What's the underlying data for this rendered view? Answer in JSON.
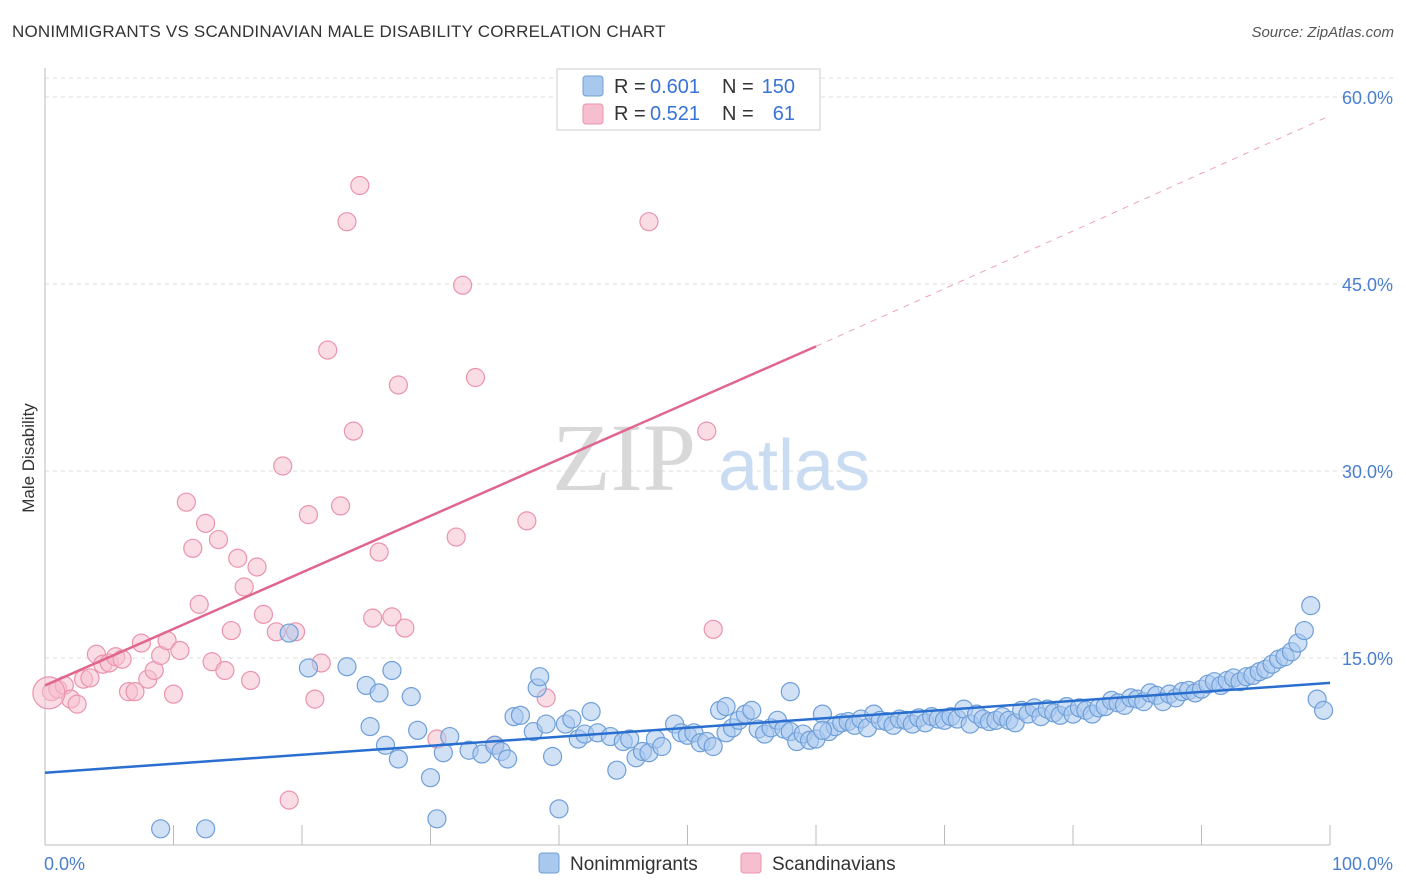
{
  "title": "NONIMMIGRANTS VS SCANDINAVIAN MALE DISABILITY CORRELATION CHART",
  "source": "Source: ZipAtlas.com",
  "watermark": {
    "zip": "ZIP",
    "atlas": "atlas"
  },
  "colors": {
    "blue_fill": "#a9c8ee",
    "blue_stroke": "#6f9fd8",
    "blue_line": "#2a6fd0",
    "pink_fill": "#f6bfd0",
    "pink_stroke": "#ea93ae",
    "pink_line": "#e0668e",
    "tick_text": "#4a7fd0",
    "grid": "#dddddd"
  },
  "legend": {
    "rows": [
      {
        "r_label": "R = ",
        "r_value": "0.601",
        "n_label": "N = ",
        "n_value": "150"
      },
      {
        "r_label": "R = ",
        "r_value": "0.521",
        "n_label": "N = ",
        "n_value": "61"
      }
    ]
  },
  "chart_data": {
    "type": "scatter",
    "title": "NONIMMIGRANTS VS SCANDINAVIAN MALE DISABILITY CORRELATION CHART",
    "xlabel": "",
    "ylabel": "Male Disability",
    "xlim": [
      0,
      100
    ],
    "ylim": [
      0,
      60
    ],
    "x_tick_labels": [
      {
        "value": 0,
        "label": "0.0%"
      },
      {
        "value": 100,
        "label": "100.0%"
      }
    ],
    "y_tick_labels": [
      {
        "value": 15,
        "label": "15.0%"
      },
      {
        "value": 30,
        "label": "30.0%"
      },
      {
        "value": 45,
        "label": "45.0%"
      },
      {
        "value": 60,
        "label": "60.0%"
      }
    ],
    "grid": true,
    "legend_position": "top-center",
    "series": [
      {
        "name": "Nonimmigrants",
        "color": "#a9c8ee",
        "R": 0.601,
        "N": 150,
        "trend": {
          "x0": 0,
          "y0": 5.8,
          "x1": 100,
          "y1": 13.0
        },
        "points": [
          [
            9,
            1.3
          ],
          [
            12.5,
            1.3
          ],
          [
            19,
            17
          ],
          [
            20.5,
            14.2
          ],
          [
            23.5,
            14.3
          ],
          [
            25,
            12.8
          ],
          [
            25.3,
            9.5
          ],
          [
            26,
            12.2
          ],
          [
            26.5,
            8
          ],
          [
            27,
            14
          ],
          [
            27.5,
            6.9
          ],
          [
            28.5,
            11.9
          ],
          [
            29,
            9.2
          ],
          [
            30,
            5.4
          ],
          [
            30.5,
            2.1
          ],
          [
            31,
            7.4
          ],
          [
            31.5,
            8.7
          ],
          [
            33,
            7.6
          ],
          [
            34,
            7.3
          ],
          [
            35,
            8
          ],
          [
            35.5,
            7.5
          ],
          [
            36,
            6.9
          ],
          [
            36.5,
            10.3
          ],
          [
            37,
            10.4
          ],
          [
            38,
            9.1
          ],
          [
            38.3,
            12.6
          ],
          [
            38.5,
            13.5
          ],
          [
            39,
            9.7
          ],
          [
            39.5,
            7.1
          ],
          [
            40,
            2.9
          ],
          [
            40.5,
            9.7
          ],
          [
            41,
            10.1
          ],
          [
            41.5,
            8.5
          ],
          [
            42,
            8.9
          ],
          [
            42.5,
            10.7
          ],
          [
            43,
            9
          ],
          [
            44,
            8.7
          ],
          [
            44.5,
            6
          ],
          [
            45,
            8.3
          ],
          [
            45.5,
            8.5
          ],
          [
            46,
            7
          ],
          [
            46.5,
            7.5
          ],
          [
            47,
            7.4
          ],
          [
            47.5,
            8.5
          ],
          [
            48,
            7.9
          ],
          [
            49,
            9.7
          ],
          [
            49.5,
            9
          ],
          [
            50,
            8.8
          ],
          [
            50.5,
            9
          ],
          [
            51,
            8.2
          ],
          [
            51.5,
            8.3
          ],
          [
            52,
            7.9
          ],
          [
            52.5,
            10.8
          ],
          [
            53,
            9
          ],
          [
            53.5,
            9.4
          ],
          [
            54,
            10
          ],
          [
            54.5,
            10.5
          ],
          [
            55,
            10.8
          ],
          [
            55.5,
            9.3
          ],
          [
            56,
            8.9
          ],
          [
            56.5,
            9.4
          ],
          [
            57,
            10
          ],
          [
            57.5,
            9.3
          ],
          [
            58,
            9.1
          ],
          [
            58.5,
            8.3
          ],
          [
            59,
            8.9
          ],
          [
            59.5,
            8.4
          ],
          [
            60,
            8.5
          ],
          [
            60.5,
            10.5
          ],
          [
            61,
            9.1
          ],
          [
            61.5,
            9.5
          ],
          [
            62,
            9.8
          ],
          [
            62.5,
            9.9
          ],
          [
            63,
            9.6
          ],
          [
            63.5,
            10.1
          ],
          [
            64,
            9.4
          ],
          [
            64.5,
            10.5
          ],
          [
            65,
            10
          ],
          [
            65.5,
            9.9
          ],
          [
            66,
            9.6
          ],
          [
            66.5,
            10.1
          ],
          [
            67,
            10
          ],
          [
            67.5,
            9.7
          ],
          [
            68,
            10.2
          ],
          [
            68.5,
            9.8
          ],
          [
            69,
            10.3
          ],
          [
            69.5,
            10.1
          ],
          [
            70,
            10
          ],
          [
            70.5,
            10.3
          ],
          [
            71,
            10.1
          ],
          [
            71.5,
            10.9
          ],
          [
            72,
            9.7
          ],
          [
            72.5,
            10.5
          ],
          [
            73,
            10.1
          ],
          [
            73.5,
            9.9
          ],
          [
            74,
            10
          ],
          [
            74.5,
            10.3
          ],
          [
            75,
            10
          ],
          [
            75.5,
            9.8
          ],
          [
            76,
            10.8
          ],
          [
            76.5,
            10.5
          ],
          [
            77,
            11
          ],
          [
            77.5,
            10.3
          ],
          [
            78,
            10.9
          ],
          [
            78.5,
            10.6
          ],
          [
            79,
            10.4
          ],
          [
            79.5,
            11.1
          ],
          [
            80,
            10.5
          ],
          [
            80.5,
            11
          ],
          [
            81,
            10.8
          ],
          [
            81.5,
            10.5
          ],
          [
            82,
            11
          ],
          [
            82.5,
            11.1
          ],
          [
            83,
            11.6
          ],
          [
            83.5,
            11.4
          ],
          [
            84,
            11.2
          ],
          [
            84.5,
            11.8
          ],
          [
            85,
            11.7
          ],
          [
            85.5,
            11.5
          ],
          [
            86,
            12.2
          ],
          [
            86.5,
            12
          ],
          [
            87,
            11.5
          ],
          [
            87.5,
            12.1
          ],
          [
            88,
            11.8
          ],
          [
            88.5,
            12.3
          ],
          [
            89,
            12.4
          ],
          [
            89.5,
            12.2
          ],
          [
            90,
            12.5
          ],
          [
            90.5,
            12.9
          ],
          [
            91,
            13.1
          ],
          [
            91.5,
            12.8
          ],
          [
            92,
            13.2
          ],
          [
            92.5,
            13.4
          ],
          [
            93,
            13.1
          ],
          [
            93.5,
            13.5
          ],
          [
            94,
            13.6
          ],
          [
            94.5,
            13.9
          ],
          [
            95,
            14.1
          ],
          [
            95.5,
            14.5
          ],
          [
            96,
            14.9
          ],
          [
            96.5,
            15.1
          ],
          [
            97,
            15.5
          ],
          [
            97.5,
            16.2
          ],
          [
            98,
            17.2
          ],
          [
            98.5,
            19.2
          ],
          [
            99,
            11.7
          ],
          [
            99.5,
            10.8
          ],
          [
            58,
            12.3
          ],
          [
            53,
            11.1
          ],
          [
            60.5,
            9.2
          ]
        ]
      },
      {
        "name": "Scandinavians",
        "color": "#f6bfd0",
        "R": 0.521,
        "N": 61,
        "trend": {
          "x0": 0,
          "y0": 12.8,
          "x1": 60,
          "y1": 40,
          "dashed_to": {
            "x": 100,
            "y": 58.5
          }
        },
        "points": [
          [
            0.5,
            12.3
          ],
          [
            1,
            12.5
          ],
          [
            1.5,
            12.8
          ],
          [
            2,
            11.7
          ],
          [
            2.5,
            11.3
          ],
          [
            3,
            13.3
          ],
          [
            3.5,
            13.4
          ],
          [
            4,
            15.3
          ],
          [
            4.5,
            14.5
          ],
          [
            5,
            14.6
          ],
          [
            5.5,
            15.1
          ],
          [
            6,
            14.9
          ],
          [
            6.5,
            12.3
          ],
          [
            7,
            12.3
          ],
          [
            7.5,
            16.2
          ],
          [
            8,
            13.3
          ],
          [
            8.5,
            14
          ],
          [
            9,
            15.2
          ],
          [
            9.5,
            16.4
          ],
          [
            10,
            12.1
          ],
          [
            10.5,
            15.6
          ],
          [
            11,
            27.5
          ],
          [
            11.5,
            23.8
          ],
          [
            12,
            19.3
          ],
          [
            12.5,
            25.8
          ],
          [
            13,
            14.7
          ],
          [
            13.5,
            24.5
          ],
          [
            14,
            14
          ],
          [
            14.5,
            17.2
          ],
          [
            15,
            23
          ],
          [
            15.5,
            20.7
          ],
          [
            16,
            13.2
          ],
          [
            16.5,
            22.3
          ],
          [
            17,
            18.5
          ],
          [
            18,
            17.1
          ],
          [
            18.5,
            30.4
          ],
          [
            19,
            3.6
          ],
          [
            19.5,
            17.1
          ],
          [
            20.5,
            26.5
          ],
          [
            21,
            11.7
          ],
          [
            21.5,
            14.6
          ],
          [
            22,
            39.7
          ],
          [
            23,
            27.2
          ],
          [
            23.5,
            50
          ],
          [
            24,
            33.2
          ],
          [
            24.5,
            52.9
          ],
          [
            25.5,
            18.2
          ],
          [
            26,
            23.5
          ],
          [
            27,
            18.3
          ],
          [
            27.5,
            36.9
          ],
          [
            28,
            17.4
          ],
          [
            30.5,
            8.5
          ],
          [
            32,
            24.7
          ],
          [
            32.5,
            44.9
          ],
          [
            33.5,
            37.5
          ],
          [
            35,
            8
          ],
          [
            37.5,
            26
          ],
          [
            39,
            11.8
          ],
          [
            47,
            50
          ],
          [
            51.5,
            33.2
          ],
          [
            52,
            17.3
          ]
        ]
      }
    ]
  }
}
